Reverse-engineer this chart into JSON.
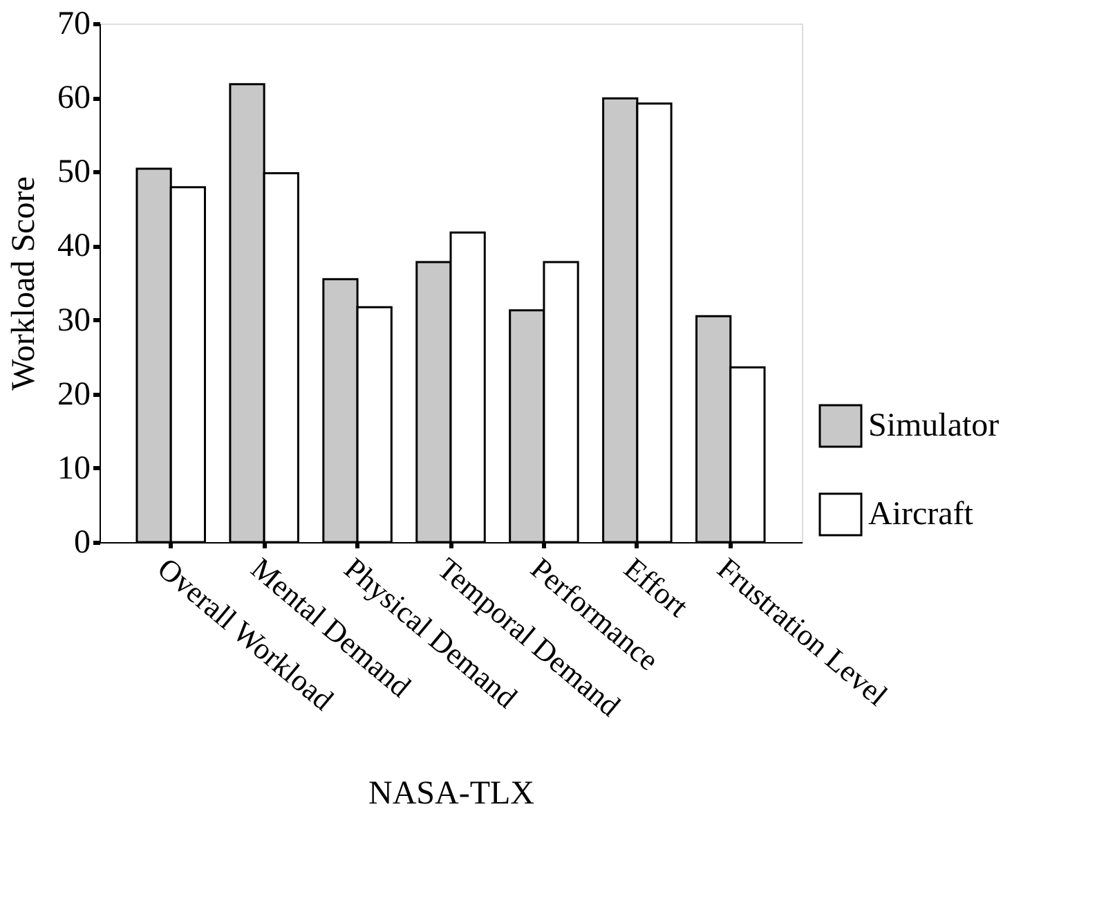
{
  "chart_data": {
    "type": "bar",
    "xlabel": "NASA-TLX",
    "ylabel": "Workload Score",
    "categories": [
      "Overall Workload",
      "Mental Demand",
      "Physical Demand",
      "Temporal Demand",
      "Performance",
      "Effort",
      "Frustration Level"
    ],
    "series": [
      {
        "name": "Simulator",
        "color": "#c8c8c8",
        "values": [
          50.4,
          61.8,
          35.5,
          37.8,
          31.3,
          59.9,
          30.5
        ]
      },
      {
        "name": "Aircraft",
        "color": "#ffffff",
        "values": [
          47.9,
          49.8,
          31.7,
          41.8,
          37.8,
          59.2,
          23.6
        ]
      }
    ],
    "ylim": [
      0,
      70
    ],
    "yticks": [
      0,
      10,
      20,
      30,
      40,
      50,
      60,
      70
    ],
    "grid": false,
    "legend": "right"
  }
}
